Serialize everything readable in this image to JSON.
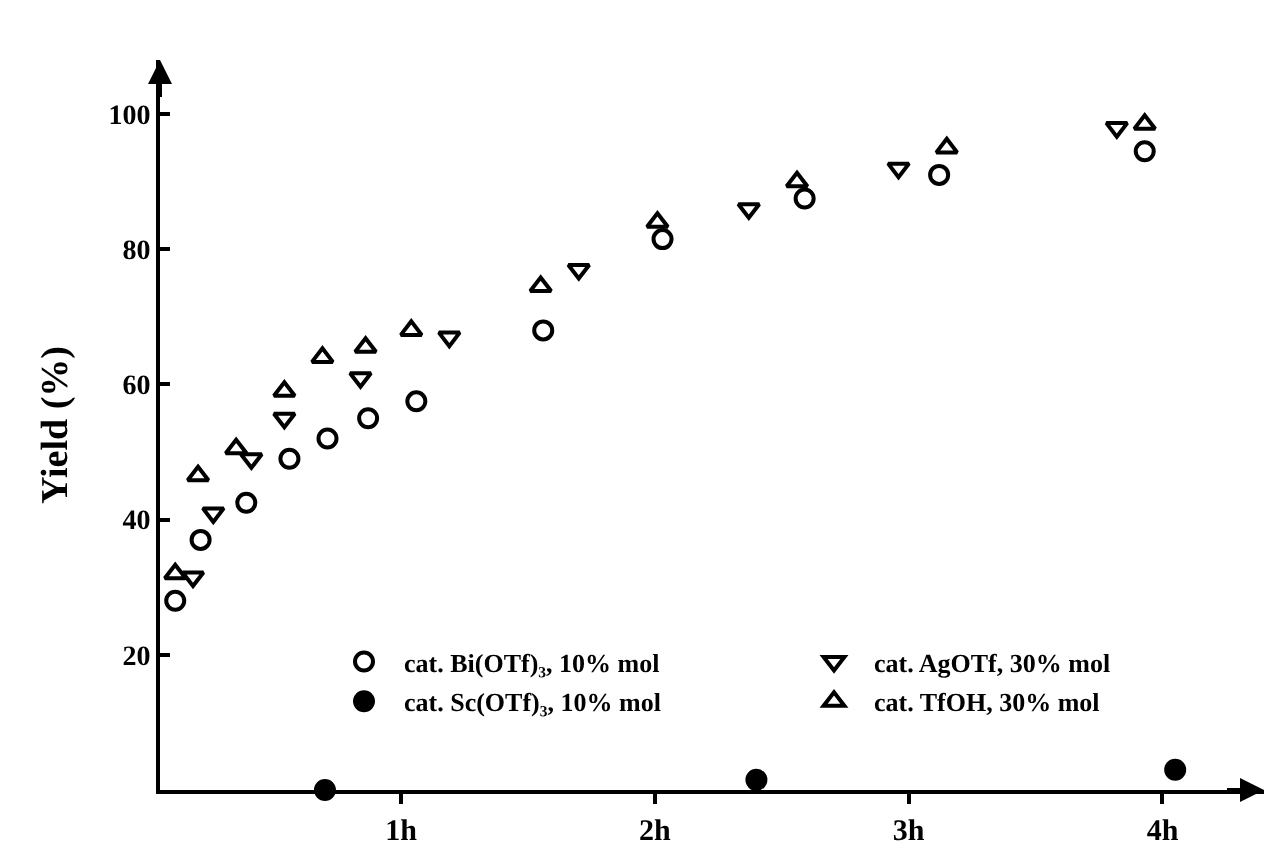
{
  "chart_data": {
    "type": "scatter",
    "ylabel": "Yield (%)",
    "xlim": [
      0.05,
      4.4
    ],
    "xticks": [
      {
        "value": 1,
        "label": "1h"
      },
      {
        "value": 2,
        "label": "2h"
      },
      {
        "value": 3,
        "label": "3h"
      },
      {
        "value": 4,
        "label": "4h"
      }
    ],
    "ylim": [
      0,
      108
    ],
    "yticks": [
      20,
      40,
      60,
      80,
      100
    ],
    "legend": "bottom right",
    "series": [
      {
        "name": "cat. Bi(OTf)₃, 10% mol",
        "color": "#000000",
        "marker": "circle-open",
        "x": [
          0.11,
          0.21,
          0.39,
          0.56,
          0.71,
          0.87,
          1.06,
          1.56,
          2.03,
          2.59,
          3.12,
          3.93
        ],
        "values": [
          28,
          37,
          42.5,
          49,
          52,
          55,
          57.5,
          68,
          81.5,
          87.5,
          91,
          94.5
        ]
      },
      {
        "name": "cat. AgOTf, 30% mol",
        "color": "#000000",
        "marker": "triangle-down-open",
        "x": [
          0.18,
          0.26,
          0.41,
          0.54,
          0.84,
          1.19,
          1.7,
          2.37,
          2.96,
          3.82
        ],
        "values": [
          31.5,
          41,
          49,
          55,
          61,
          67,
          77,
          86,
          92,
          98
        ]
      },
      {
        "name": "cat. Sc(OTf)₃, 10% mol",
        "color": "#000000",
        "marker": "circle",
        "x": [
          0.7,
          2.4,
          4.05
        ],
        "values": [
          0,
          1.5,
          3
        ]
      },
      {
        "name": "cat. TfOH, 30% mol",
        "color": "#000000",
        "marker": "triangle-up-open",
        "x": [
          0.11,
          0.2,
          0.35,
          0.54,
          0.69,
          0.86,
          1.04,
          1.55,
          2.01,
          2.56,
          3.15,
          3.93
        ],
        "values": [
          32,
          46.5,
          50.5,
          59,
          64,
          65.5,
          68,
          74.5,
          84,
          90,
          95,
          98.5
        ]
      }
    ]
  }
}
